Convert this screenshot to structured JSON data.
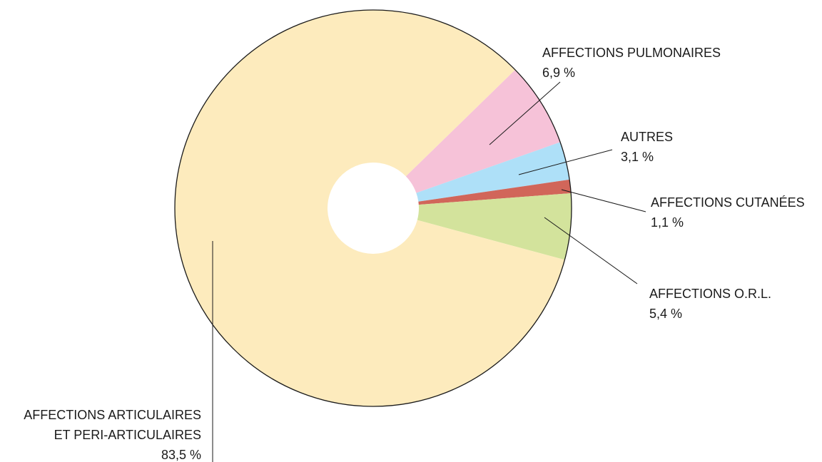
{
  "chart_data": {
    "type": "pie",
    "donut": true,
    "categories": [
      "AFFECTIONS PULMONAIRES",
      "AUTRES",
      "AFFECTIONS CUTANÉES",
      "AFFECTIONS O.R.L.",
      "AFFECTIONS ARTICULAIRES\nET PERI-ARTICULAIRES"
    ],
    "values": [
      6.9,
      3.1,
      1.1,
      5.4,
      83.5
    ],
    "value_labels": [
      "6,9 %",
      "3,1 %",
      "1,1 %",
      "5,4 %",
      "83,5 %"
    ],
    "colors": [
      "#f6c2d8",
      "#aee0f8",
      "#d1665a",
      "#d3e39c",
      "#fdebbd"
    ]
  }
}
